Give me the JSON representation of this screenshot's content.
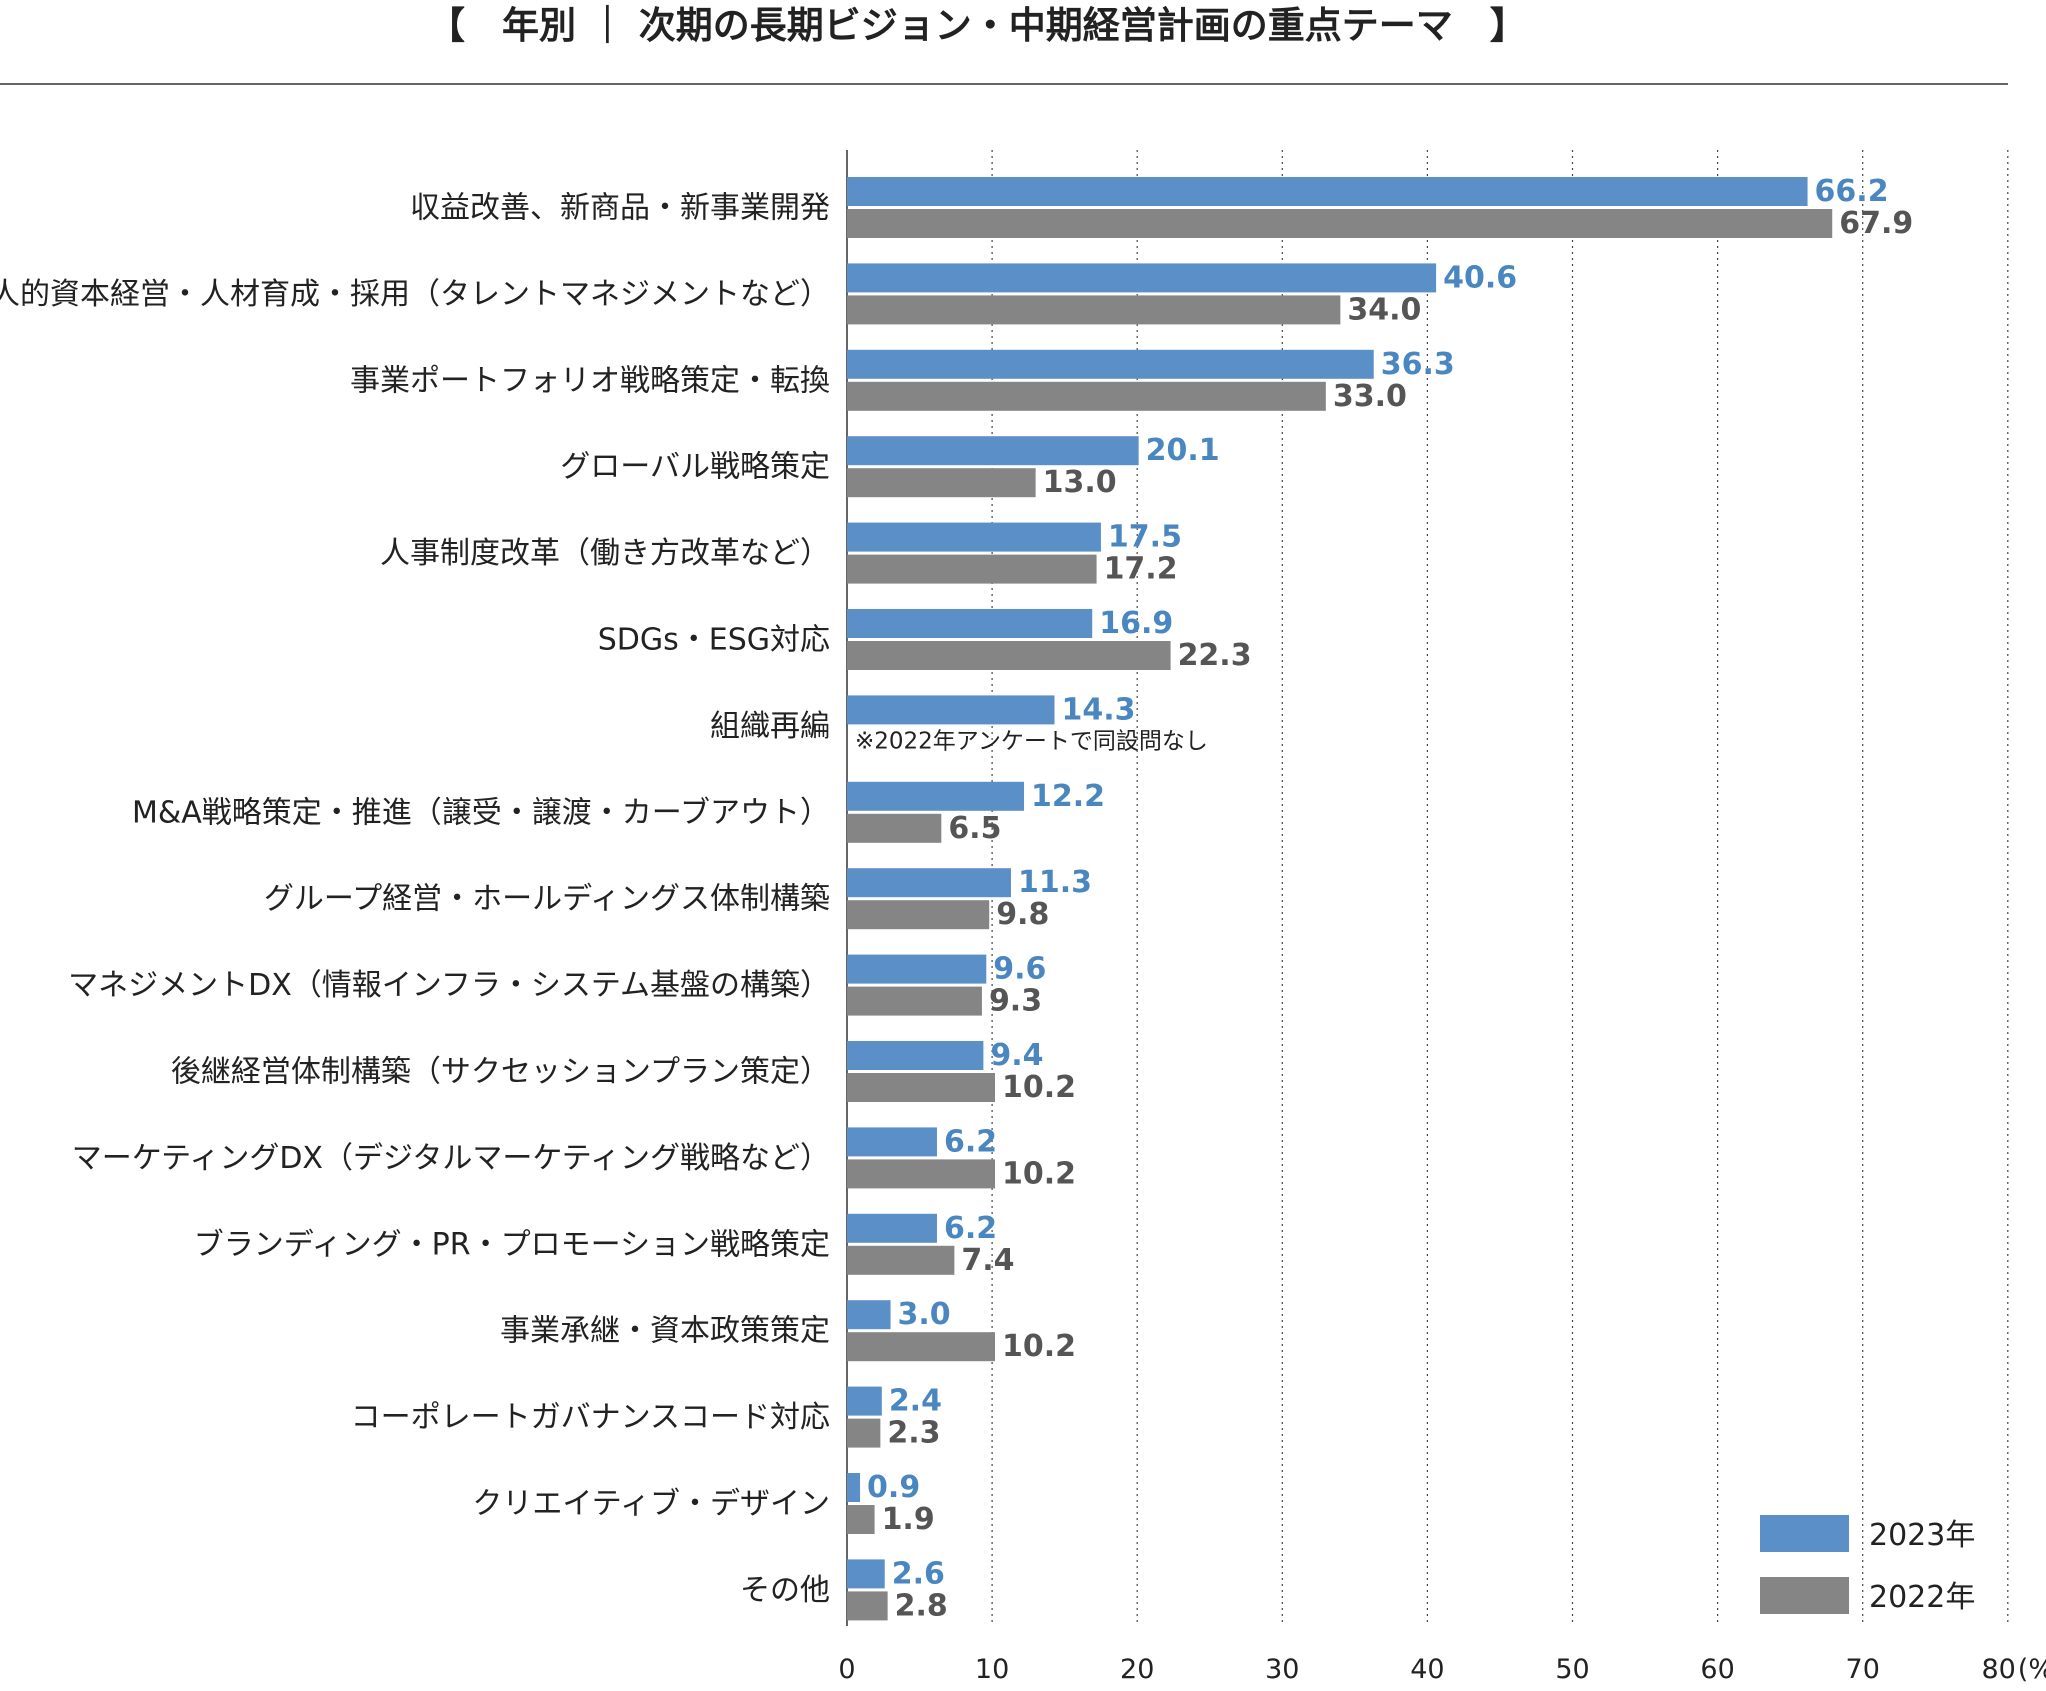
{
  "title": "【　年別 ｜ 次期の長期ビジョン・中期経営計画の重点テーマ　】",
  "chart_data": {
    "type": "bar",
    "orientation": "horizontal",
    "categories": [
      "収益改善、新商品・新事業開発",
      "人的資本経営・人材育成・採用（タレントマネジメントなど）",
      "事業ポートフォリオ戦略策定・転換",
      "グローバル戦略策定",
      "人事制度改革（働き方改革など）",
      "SDGs・ESG対応",
      "組織再編",
      "M&A戦略策定・推進（譲受・譲渡・カーブアウト）",
      "グループ経営・ホールディングス体制構築",
      "マネジメントDX（情報インフラ・システム基盤の構築）",
      "後継経営体制構築（サクセッションプラン策定）",
      "マーケティングDX（デジタルマーケティング戦略など）",
      "ブランディング・PR・プロモーション戦略策定",
      "事業承継・資本政策策定",
      "コーポレートガバナンスコード対応",
      "クリエイティブ・デザイン",
      "その他"
    ],
    "series": [
      {
        "name": "2023年",
        "color": "#5b8fc7",
        "label_color": "#3a7dbd",
        "values": [
          66.2,
          40.6,
          36.3,
          20.1,
          17.5,
          16.9,
          14.3,
          12.2,
          11.3,
          9.6,
          9.4,
          6.2,
          6.2,
          3.0,
          2.4,
          0.9,
          2.6
        ],
        "labels": [
          "66.2",
          "40.6",
          "36.3",
          "20.1",
          "17.5",
          "16.9",
          "14.3",
          "12.2",
          "11.3",
          "9.6",
          "9.4",
          "6.2",
          "6.2",
          "3.0",
          "2.4",
          "0.9",
          "2.6"
        ]
      },
      {
        "name": "2022年",
        "color": "#858585",
        "label_color": "#555555",
        "values": [
          67.9,
          34.0,
          33.0,
          13.0,
          17.2,
          22.3,
          null,
          6.5,
          9.8,
          9.3,
          10.2,
          10.2,
          7.4,
          10.2,
          2.3,
          1.9,
          2.8
        ],
        "labels": [
          "67.9",
          "34.0",
          "33.0",
          "13.0",
          "17.2",
          "22.3",
          "",
          "6.5",
          "9.8",
          "9.3",
          "10.2",
          "10.2",
          "7.4",
          "10.2",
          "2.3",
          "1.9",
          "2.8"
        ]
      }
    ],
    "note": "※2022年アンケートで同設問なし",
    "note_category_index": 6,
    "x_ticks": [
      "0",
      "10",
      "20",
      "30",
      "40",
      "50",
      "60",
      "70",
      "80"
    ],
    "x_unit": "(%)",
    "xlim": [
      0,
      80
    ],
    "grid": "vertical dotted",
    "legend_position": "bottom-right"
  }
}
